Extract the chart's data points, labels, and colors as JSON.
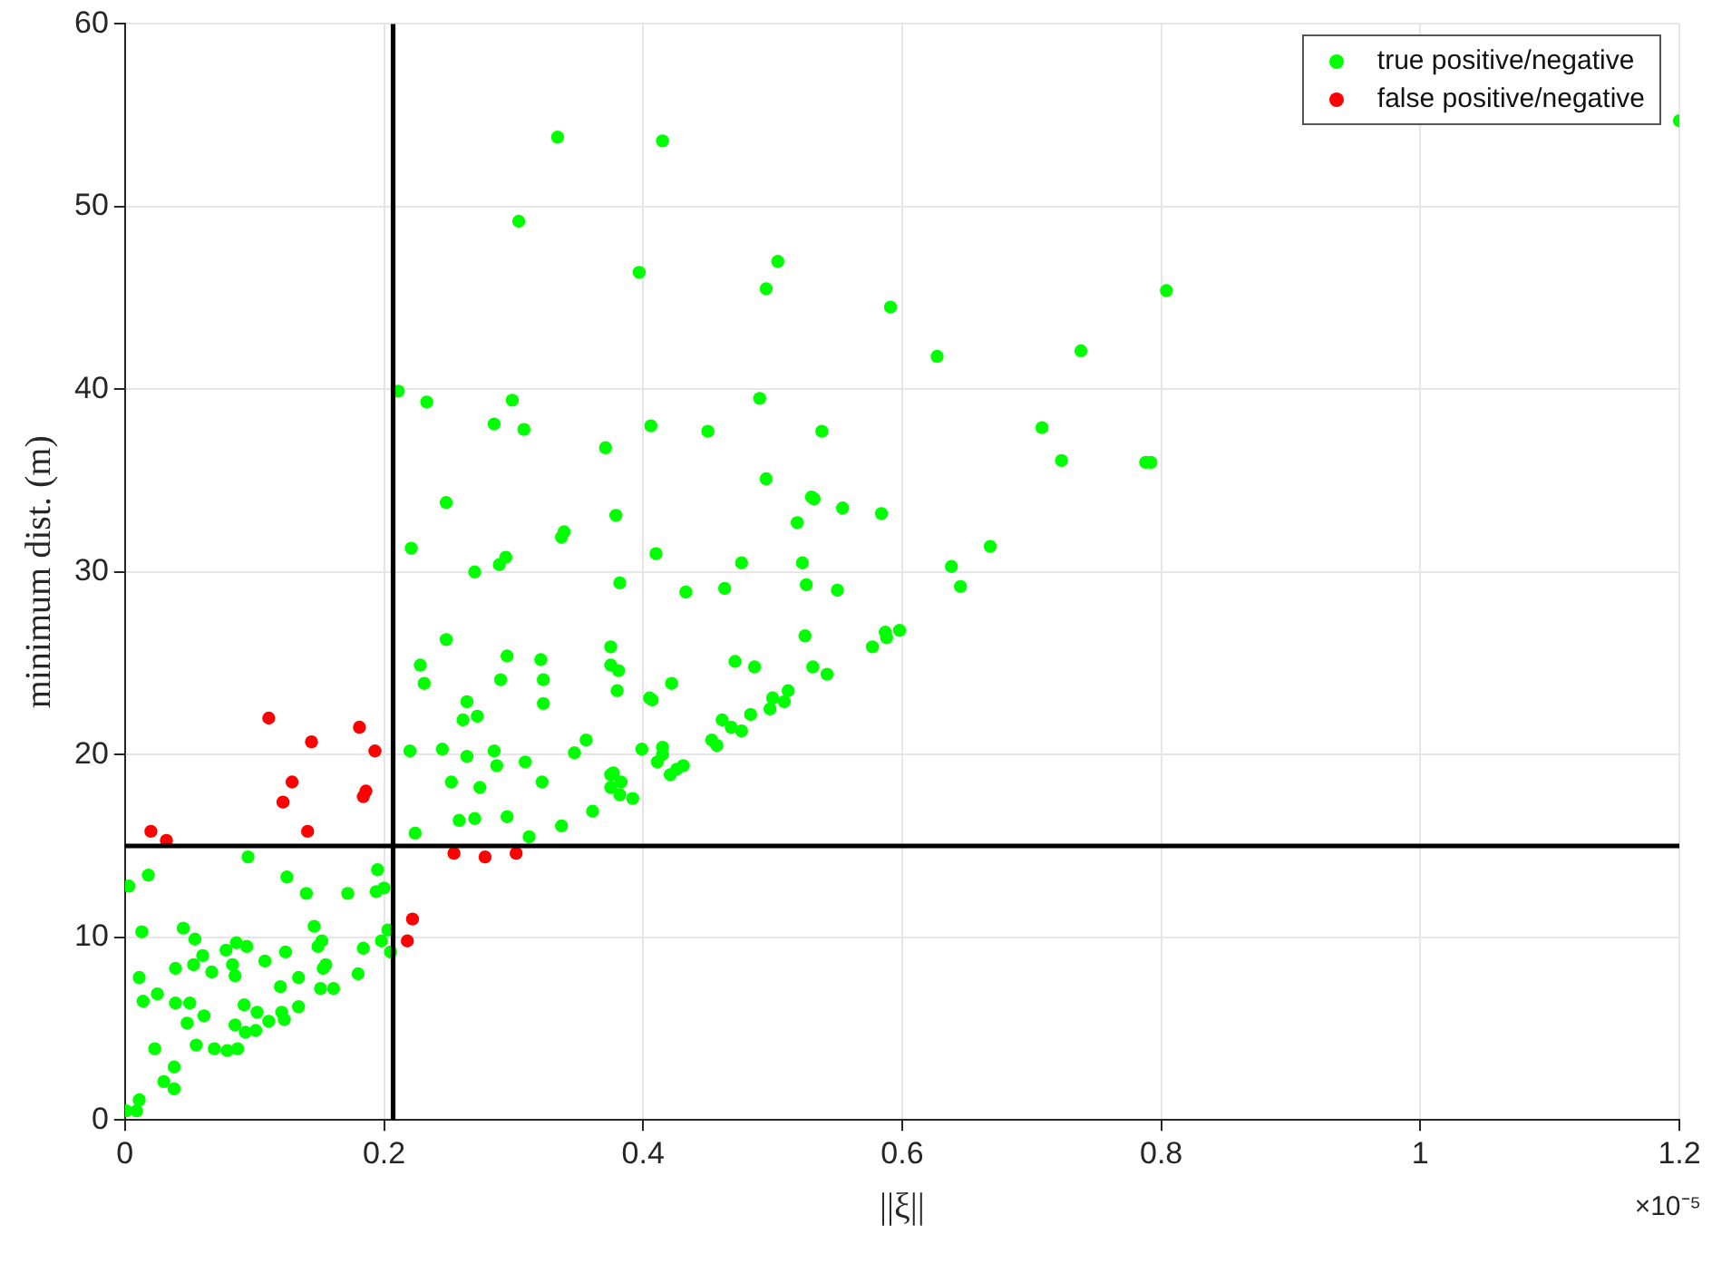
{
  "chart_data": {
    "type": "scatter",
    "xlabel": "||ξ||",
    "ylabel": "minimum dist. (m)",
    "xlim": [
      0,
      1.2
    ],
    "xticks": [
      0,
      0.2,
      0.4,
      0.6,
      0.8,
      1,
      1.2
    ],
    "ylim": [
      0,
      60
    ],
    "yticks": [
      0,
      10,
      20,
      30,
      40,
      50,
      60
    ],
    "grid": true,
    "legend": "top right",
    "marker": "circle",
    "annotations": [
      "×10⁻⁵"
    ],
    "ref_lines": [
      {
        "axis": "x",
        "value": 0.207,
        "color": "#000000"
      },
      {
        "axis": "y",
        "value": 15,
        "color": "#000000"
      }
    ],
    "series": [
      {
        "name": "true positive/negative",
        "color": "#00ff00",
        "x": [
          0.003,
          0.018,
          0.095,
          0.125,
          0.14,
          0.172,
          0.195,
          0.194,
          0.2,
          0.013,
          0.045,
          0.054,
          0.06,
          0.039,
          0.053,
          0.067,
          0.078,
          0.086,
          0.094,
          0.083,
          0.085,
          0.108,
          0.124,
          0.146,
          0.149,
          0.152,
          0.153,
          0.155,
          0.184,
          0.18,
          0.198,
          0.203,
          0.205,
          0.011,
          0.014,
          0.025,
          0.039,
          0.05,
          0.048,
          0.061,
          0.092,
          0.102,
          0.085,
          0.093,
          0.101,
          0.111,
          0.121,
          0.123,
          0.12,
          0.134,
          0.134,
          0.151,
          0.161,
          0.055,
          0.069,
          0.079,
          0.087,
          0.023,
          0.038,
          0.03,
          0.038,
          0.011,
          0.001,
          0.009,
          0.334,
          0.415,
          0.304,
          0.397,
          0.504,
          0.495,
          0.211,
          0.233,
          0.299,
          0.285,
          0.308,
          0.371,
          0.406,
          0.45,
          0.49,
          0.495,
          0.248,
          0.379,
          0.337,
          0.339,
          0.221,
          0.27,
          0.289,
          0.294,
          0.41,
          0.382,
          0.433,
          0.463,
          0.476,
          0.519,
          0.523,
          0.526,
          0.525,
          0.53,
          0.248,
          0.228,
          0.231,
          0.295,
          0.321,
          0.323,
          0.29,
          0.375,
          0.375,
          0.381,
          0.38,
          0.422,
          0.471,
          0.486,
          0.264,
          0.261,
          0.272,
          0.323,
          0.405,
          0.407,
          0.22,
          0.245,
          0.264,
          0.285,
          0.287,
          0.309,
          0.252,
          0.274,
          0.322,
          0.347,
          0.356,
          0.399,
          0.415,
          0.415,
          0.411,
          0.375,
          0.377,
          0.383,
          0.375,
          0.382,
          0.392,
          0.421,
          0.426,
          0.431,
          0.453,
          0.457,
          0.461,
          0.468,
          0.476,
          0.483,
          0.498,
          0.5,
          0.509,
          0.512,
          0.258,
          0.27,
          0.295,
          0.312,
          0.337,
          0.361,
          0.224,
          0.591,
          0.627,
          0.738,
          0.804,
          0.538,
          0.708,
          0.723,
          0.788,
          0.792,
          0.532,
          0.554,
          0.584,
          0.668,
          0.55,
          0.638,
          0.645,
          0.577,
          0.587,
          0.588,
          0.598,
          0.531,
          0.542,
          1.2
        ],
        "values": [
          12.8,
          13.4,
          14.4,
          13.3,
          12.4,
          12.4,
          13.7,
          12.5,
          12.7,
          10.3,
          10.5,
          9.9,
          9,
          8.3,
          8.5,
          8.1,
          9.3,
          9.7,
          9.5,
          8.5,
          7.9,
          8.7,
          9.2,
          10.6,
          9.5,
          9.8,
          8.3,
          8.5,
          9.4,
          8,
          9.8,
          10.4,
          9.2,
          7.8,
          6.5,
          6.9,
          6.4,
          6.4,
          5.3,
          5.7,
          6.3,
          5.9,
          5.2,
          4.8,
          4.9,
          5.4,
          5.9,
          5.5,
          7.3,
          7.8,
          6.2,
          7.2,
          7.2,
          4.1,
          3.9,
          3.8,
          3.9,
          3.9,
          2.9,
          2.1,
          1.7,
          1.1,
          0.5,
          0.5,
          53.8,
          53.6,
          49.2,
          46.4,
          47,
          45.5,
          39.9,
          39.3,
          39.4,
          38.1,
          37.8,
          36.8,
          38,
          37.7,
          39.5,
          35.1,
          33.8,
          33.1,
          31.9,
          32.2,
          31.3,
          30,
          30.4,
          30.8,
          31,
          29.4,
          28.9,
          29.1,
          30.5,
          32.7,
          30.5,
          29.3,
          26.5,
          34.1,
          26.3,
          24.9,
          23.9,
          25.4,
          25.2,
          24.1,
          24.1,
          25.9,
          24.9,
          24.6,
          23.5,
          23.9,
          25.1,
          24.8,
          22.9,
          21.9,
          22.1,
          22.8,
          23.1,
          23,
          20.2,
          20.3,
          19.9,
          20.2,
          19.4,
          19.6,
          18.5,
          18.2,
          18.5,
          20.1,
          20.8,
          20.3,
          20.4,
          20,
          19.6,
          18.9,
          19,
          18.5,
          18.2,
          17.8,
          17.6,
          18.9,
          19.2,
          19.4,
          20.8,
          20.5,
          21.9,
          21.5,
          21.3,
          22.2,
          22.5,
          23.1,
          22.9,
          23.5,
          16.4,
          16.5,
          16.6,
          15.5,
          16.1,
          16.9,
          15.7,
          44.5,
          41.8,
          42.1,
          45.4,
          37.7,
          37.9,
          36.1,
          36,
          36,
          34,
          33.5,
          33.2,
          31.4,
          29,
          30.3,
          29.2,
          25.9,
          26.7,
          26.4,
          26.8,
          24.8,
          24.4,
          54.7
        ]
      },
      {
        "name": "false positive/negative",
        "color": "#ff0000",
        "x": [
          0.02,
          0.032,
          0.111,
          0.144,
          0.129,
          0.122,
          0.141,
          0.181,
          0.193,
          0.186,
          0.184,
          0.222,
          0.218,
          0.254,
          0.278,
          0.302
        ],
        "values": [
          15.8,
          15.3,
          22,
          20.7,
          18.5,
          17.4,
          15.8,
          21.5,
          20.2,
          18,
          17.7,
          11,
          9.8,
          14.6,
          14.4,
          14.6
        ]
      }
    ]
  }
}
